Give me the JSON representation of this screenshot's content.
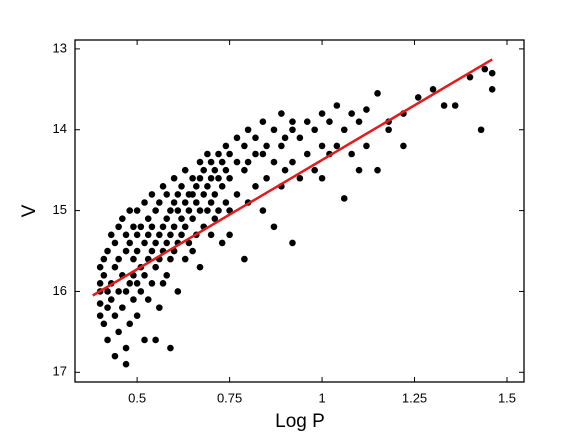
{
  "chart_data": {
    "type": "scatter",
    "x_label": "Log P",
    "y_label": "V",
    "xlim": [
      0.332,
      1.546
    ],
    "ylim": [
      17.12,
      12.89
    ],
    "xticks": [
      0.5,
      0.75,
      1,
      1.25,
      1.5
    ],
    "yticks": [
      13,
      14,
      15,
      16,
      17
    ],
    "points": {
      "color": "#000000",
      "x": [
        0.4,
        0.4,
        0.4,
        0.4,
        0.4,
        0.41,
        0.41,
        0.41,
        0.42,
        0.42,
        0.42,
        0.42,
        0.43,
        0.43,
        0.43,
        0.44,
        0.44,
        0.44,
        0.44,
        0.45,
        0.45,
        0.45,
        0.45,
        0.46,
        0.46,
        0.46,
        0.47,
        0.47,
        0.47,
        0.47,
        0.47,
        0.48,
        0.48,
        0.48,
        0.48,
        0.49,
        0.49,
        0.49,
        0.49,
        0.5,
        0.5,
        0.5,
        0.5,
        0.5,
        0.51,
        0.51,
        0.51,
        0.52,
        0.52,
        0.52,
        0.52,
        0.53,
        0.53,
        0.53,
        0.53,
        0.54,
        0.54,
        0.54,
        0.54,
        0.55,
        0.55,
        0.55,
        0.55,
        0.56,
        0.56,
        0.56,
        0.56,
        0.57,
        0.57,
        0.57,
        0.57,
        0.58,
        0.58,
        0.58,
        0.58,
        0.59,
        0.59,
        0.59,
        0.59,
        0.6,
        0.6,
        0.6,
        0.6,
        0.61,
        0.61,
        0.61,
        0.61,
        0.62,
        0.62,
        0.62,
        0.63,
        0.63,
        0.63,
        0.63,
        0.64,
        0.64,
        0.64,
        0.65,
        0.65,
        0.65,
        0.65,
        0.66,
        0.66,
        0.66,
        0.67,
        0.67,
        0.67,
        0.67,
        0.68,
        0.68,
        0.68,
        0.69,
        0.69,
        0.69,
        0.7,
        0.7,
        0.7,
        0.7,
        0.71,
        0.71,
        0.71,
        0.72,
        0.72,
        0.72,
        0.73,
        0.73,
        0.73,
        0.74,
        0.74,
        0.74,
        0.75,
        0.75,
        0.75,
        0.75,
        0.77,
        0.77,
        0.77,
        0.79,
        0.79,
        0.79,
        0.8,
        0.8,
        0.8,
        0.82,
        0.82,
        0.82,
        0.84,
        0.84,
        0.84,
        0.85,
        0.85,
        0.87,
        0.87,
        0.87,
        0.89,
        0.89,
        0.89,
        0.9,
        0.9,
        0.92,
        0.92,
        0.92,
        0.92,
        0.94,
        0.94,
        0.96,
        0.96,
        0.98,
        0.98,
        1.0,
        1.0,
        1.0,
        1.02,
        1.02,
        1.04,
        1.04,
        1.06,
        1.06,
        1.08,
        1.08,
        1.1,
        1.1,
        1.12,
        1.12,
        1.15,
        1.15,
        1.18,
        1.18,
        1.22,
        1.22,
        1.26,
        1.3,
        1.33,
        1.36,
        1.4,
        1.43,
        1.44,
        1.46,
        1.46
      ],
      "values": [
        15.7,
        16.0,
        16.3,
        15.9,
        16.15,
        15.8,
        16.4,
        15.6,
        16.0,
        15.5,
        16.2,
        16.6,
        15.9,
        15.3,
        16.1,
        15.7,
        16.3,
        16.8,
        15.4,
        15.6,
        16.0,
        15.2,
        16.5,
        15.8,
        16.2,
        15.1,
        15.5,
        16.0,
        16.7,
        15.3,
        16.9,
        15.4,
        15.9,
        16.4,
        15.0,
        15.6,
        15.2,
        16.1,
        15.8,
        15.5,
        15.0,
        15.9,
        16.3,
        15.3,
        15.7,
        15.2,
        16.0,
        15.4,
        14.9,
        15.8,
        16.6,
        15.3,
        15.6,
        15.1,
        16.1,
        15.5,
        14.8,
        15.9,
        15.2,
        15.4,
        15.0,
        15.7,
        16.6,
        15.3,
        14.9,
        15.6,
        16.2,
        15.2,
        15.5,
        14.7,
        15.9,
        15.1,
        15.4,
        15.8,
        14.8,
        15.0,
        15.3,
        15.6,
        16.7,
        15.2,
        14.9,
        15.5,
        14.6,
        15.0,
        15.4,
        14.8,
        16.0,
        15.1,
        14.7,
        15.3,
        14.9,
        15.2,
        15.6,
        14.5,
        15.0,
        14.8,
        15.4,
        14.8,
        15.1,
        14.6,
        15.5,
        14.9,
        14.7,
        15.3,
        14.6,
        15.0,
        14.4,
        15.7,
        14.8,
        14.5,
        15.2,
        14.7,
        15.0,
        14.3,
        14.6,
        14.9,
        15.3,
        14.4,
        14.5,
        14.8,
        15.1,
        14.6,
        14.3,
        15.0,
        14.4,
        14.7,
        15.4,
        14.5,
        14.2,
        14.9,
        14.3,
        14.6,
        15.0,
        15.3,
        14.4,
        14.1,
        14.8,
        14.2,
        14.5,
        15.6,
        14.0,
        14.4,
        14.9,
        14.1,
        14.3,
        14.7,
        13.9,
        14.3,
        15.0,
        14.2,
        14.6,
        14.0,
        14.4,
        15.2,
        13.8,
        14.2,
        14.7,
        14.1,
        14.5,
        14.0,
        13.9,
        14.4,
        15.4,
        14.1,
        14.6,
        13.9,
        14.3,
        14.0,
        14.5,
        13.8,
        14.2,
        14.6,
        13.9,
        14.3,
        13.7,
        14.2,
        14.0,
        14.85,
        13.8,
        14.3,
        13.9,
        14.5,
        13.75,
        14.2,
        13.55,
        14.5,
        13.9,
        14.0,
        13.8,
        14.2,
        13.6,
        13.5,
        13.7,
        13.7,
        13.35,
        14.0,
        13.25,
        13.3,
        13.5
      ]
    },
    "fit": {
      "color": "#e41a1c",
      "x": [
        0.38,
        1.46
      ],
      "values": [
        16.05,
        13.13
      ]
    }
  }
}
